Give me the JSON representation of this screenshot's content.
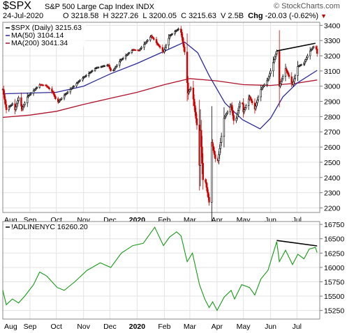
{
  "header": {
    "symbol": "$SPX",
    "description": "S&P 500 Large Cap Index",
    "exchange": "INDX",
    "brand": "© StockCharts.com",
    "date": "24-Jul-2020",
    "open_label": "O",
    "open": "3218.58",
    "high_label": "H",
    "high": "3227.26",
    "low_label": "L",
    "low": "3200.05",
    "close_label": "C",
    "close": "3215.63",
    "volume_label": "V",
    "volume": "2.5B",
    "change_label": "Chg",
    "change": "-20.03 (-0.62%)"
  },
  "chart_data": [
    {
      "type": "candlestick",
      "legend": [
        {
          "label": "$SPX (Daily) 3215.63",
          "color": "#000000"
        },
        {
          "label": "MA(50) 3104.14",
          "color": "#2b2b9c"
        },
        {
          "label": "MA(200) 3041.34",
          "color": "#b0102a"
        }
      ],
      "y_ticks": [
        2200,
        2300,
        2400,
        2500,
        2600,
        2700,
        2800,
        2900,
        3000,
        3100,
        3200,
        3300,
        3400
      ],
      "ylim": [
        2170,
        3420
      ],
      "x_ticks": [
        "Aug",
        "Sep",
        "Oct",
        "Nov",
        "Dec",
        "2020",
        "Feb",
        "Mar",
        "Apr",
        "May",
        "Jun",
        "Jul"
      ],
      "close_series": [
        {
          "t": "Aug 1",
          "v": 2980
        },
        {
          "t": "Aug 5",
          "v": 2845
        },
        {
          "t": "Aug 12",
          "v": 2885
        },
        {
          "t": "Aug 15",
          "v": 2845
        },
        {
          "t": "Aug 19",
          "v": 2925
        },
        {
          "t": "Aug 23",
          "v": 2850
        },
        {
          "t": "Aug 29",
          "v": 2930
        },
        {
          "t": "Sep 12",
          "v": 3010
        },
        {
          "t": "Sep 19",
          "v": 3005
        },
        {
          "t": "Sep 27",
          "v": 2960
        },
        {
          "t": "Oct 2",
          "v": 2890
        },
        {
          "t": "Oct 10",
          "v": 2940
        },
        {
          "t": "Oct 28",
          "v": 3040
        },
        {
          "t": "Nov 15",
          "v": 3120
        },
        {
          "t": "Nov 29",
          "v": 3140
        },
        {
          "t": "Dec 3",
          "v": 3090
        },
        {
          "t": "Dec 13",
          "v": 3170
        },
        {
          "t": "Dec 27",
          "v": 3240
        },
        {
          "t": "Jan 3",
          "v": 3235
        },
        {
          "t": "Jan 17",
          "v": 3330
        },
        {
          "t": "Jan 31",
          "v": 3225
        },
        {
          "t": "Feb 7",
          "v": 3330
        },
        {
          "t": "Feb 19",
          "v": 3386
        },
        {
          "t": "Feb 24",
          "v": 3225
        },
        {
          "t": "Feb 28",
          "v": 2955
        },
        {
          "t": "Mar 3",
          "v": 3000
        },
        {
          "t": "Mar 9",
          "v": 2745
        },
        {
          "t": "Mar 12",
          "v": 2480
        },
        {
          "t": "Mar 13",
          "v": 2710
        },
        {
          "t": "Mar 16",
          "v": 2385
        },
        {
          "t": "Mar 18",
          "v": 2400
        },
        {
          "t": "Mar 23",
          "v": 2237
        },
        {
          "t": "Mar 26",
          "v": 2630
        },
        {
          "t": "Apr 1",
          "v": 2470
        },
        {
          "t": "Apr 9",
          "v": 2790
        },
        {
          "t": "Apr 17",
          "v": 2875
        },
        {
          "t": "Apr 21",
          "v": 2740
        },
        {
          "t": "Apr 29",
          "v": 2940
        },
        {
          "t": "May 1",
          "v": 2830
        },
        {
          "t": "May 8",
          "v": 2930
        },
        {
          "t": "May 14",
          "v": 2850
        },
        {
          "t": "May 20",
          "v": 2970
        },
        {
          "t": "May 29",
          "v": 3045
        },
        {
          "t": "Jun 8",
          "v": 3230
        },
        {
          "t": "Jun 11",
          "v": 3000
        },
        {
          "t": "Jun 18",
          "v": 3115
        },
        {
          "t": "Jun 26",
          "v": 3010
        },
        {
          "t": "Jul 2",
          "v": 3130
        },
        {
          "t": "Jul 9",
          "v": 3150
        },
        {
          "t": "Jul 15",
          "v": 3225
        },
        {
          "t": "Jul 22",
          "v": 3275
        },
        {
          "t": "Jul 24",
          "v": 3215
        }
      ],
      "ma50_series": [
        {
          "t": "Aug 1",
          "v": 2950
        },
        {
          "t": "Oct 1",
          "v": 2960
        },
        {
          "t": "Nov 1",
          "v": 3000
        },
        {
          "t": "Dec 1",
          "v": 3080
        },
        {
          "t": "Jan 1",
          "v": 3150
        },
        {
          "t": "Feb 1",
          "v": 3230
        },
        {
          "t": "Feb 24",
          "v": 3290
        },
        {
          "t": "Mar 10",
          "v": 3220
        },
        {
          "t": "Mar 23",
          "v": 3070
        },
        {
          "t": "Apr 10",
          "v": 2890
        },
        {
          "t": "Apr 30",
          "v": 2780
        },
        {
          "t": "May 20",
          "v": 2720
        },
        {
          "t": "Jun 1",
          "v": 2790
        },
        {
          "t": "Jun 15",
          "v": 2930
        },
        {
          "t": "Jul 1",
          "v": 3020
        },
        {
          "t": "Jul 24",
          "v": 3104
        }
      ],
      "ma200_series": [
        {
          "t": "Aug 1",
          "v": 2795
        },
        {
          "t": "Sep 1",
          "v": 2810
        },
        {
          "t": "Oct 1",
          "v": 2835
        },
        {
          "t": "Nov 1",
          "v": 2880
        },
        {
          "t": "Dec 1",
          "v": 2920
        },
        {
          "t": "Jan 1",
          "v": 2960
        },
        {
          "t": "Feb 1",
          "v": 3010
        },
        {
          "t": "Mar 1",
          "v": 3050
        },
        {
          "t": "Apr 1",
          "v": 3035
        },
        {
          "t": "May 1",
          "v": 3010
        },
        {
          "t": "Jun 1",
          "v": 3005
        },
        {
          "t": "Jul 1",
          "v": 3020
        },
        {
          "t": "Jul 24",
          "v": 3041
        }
      ],
      "trendline": [
        {
          "t": "Jun 8",
          "v": 3232
        },
        {
          "t": "Jul 22",
          "v": 3282
        }
      ]
    },
    {
      "type": "line",
      "legend": [
        {
          "label": "!ADLINENYC 16260.20",
          "color": "#000000"
        }
      ],
      "y_ticks": [
        15250,
        15500,
        15750,
        16000,
        16250,
        16500,
        16750
      ],
      "ylim": [
        15100,
        16800
      ],
      "x_ticks": [
        "Aug",
        "Sep",
        "Oct",
        "Nov",
        "Dec",
        "2020",
        "Feb",
        "Mar",
        "Apr",
        "May",
        "Jun",
        "Jul"
      ],
      "series": [
        {
          "t": "Aug 1",
          "v": 15600
        },
        {
          "t": "Aug 5",
          "v": 15350
        },
        {
          "t": "Aug 12",
          "v": 15450
        },
        {
          "t": "Aug 19",
          "v": 15380
        },
        {
          "t": "Aug 26",
          "v": 15500
        },
        {
          "t": "Sep 5",
          "v": 15700
        },
        {
          "t": "Sep 12",
          "v": 15920
        },
        {
          "t": "Sep 20",
          "v": 15850
        },
        {
          "t": "Oct 2",
          "v": 15650
        },
        {
          "t": "Oct 10",
          "v": 15600
        },
        {
          "t": "Oct 22",
          "v": 15750
        },
        {
          "t": "Nov 5",
          "v": 15950
        },
        {
          "t": "Nov 20",
          "v": 16080
        },
        {
          "t": "Dec 2",
          "v": 16000
        },
        {
          "t": "Dec 14",
          "v": 16250
        },
        {
          "t": "Dec 27",
          "v": 16380
        },
        {
          "t": "Jan 8",
          "v": 16420
        },
        {
          "t": "Jan 21",
          "v": 16700
        },
        {
          "t": "Jan 31",
          "v": 16380
        },
        {
          "t": "Feb 7",
          "v": 16530
        },
        {
          "t": "Feb 15",
          "v": 16620
        },
        {
          "t": "Feb 20",
          "v": 16550
        },
        {
          "t": "Feb 27",
          "v": 16100
        },
        {
          "t": "Mar 4",
          "v": 16250
        },
        {
          "t": "Mar 12",
          "v": 15700
        },
        {
          "t": "Mar 18",
          "v": 15450
        },
        {
          "t": "Mar 23",
          "v": 15300
        },
        {
          "t": "Mar 27",
          "v": 15400
        },
        {
          "t": "Apr 1",
          "v": 15250
        },
        {
          "t": "Apr 9",
          "v": 15480
        },
        {
          "t": "Apr 17",
          "v": 15600
        },
        {
          "t": "Apr 21",
          "v": 15450
        },
        {
          "t": "Apr 29",
          "v": 15700
        },
        {
          "t": "May 8",
          "v": 15650
        },
        {
          "t": "May 14",
          "v": 15520
        },
        {
          "t": "May 21",
          "v": 15800
        },
        {
          "t": "May 29",
          "v": 15950
        },
        {
          "t": "Jun 8",
          "v": 16450
        },
        {
          "t": "Jun 11",
          "v": 16100
        },
        {
          "t": "Jun 18",
          "v": 16300
        },
        {
          "t": "Jun 26",
          "v": 16050
        },
        {
          "t": "Jul 2",
          "v": 16230
        },
        {
          "t": "Jul 9",
          "v": 16150
        },
        {
          "t": "Jul 15",
          "v": 16320
        },
        {
          "t": "Jul 22",
          "v": 16350
        },
        {
          "t": "Jul 24",
          "v": 16260
        }
      ],
      "trendline": [
        {
          "t": "Jun 8",
          "v": 16470
        },
        {
          "t": "Jul 24",
          "v": 16375
        }
      ]
    }
  ]
}
